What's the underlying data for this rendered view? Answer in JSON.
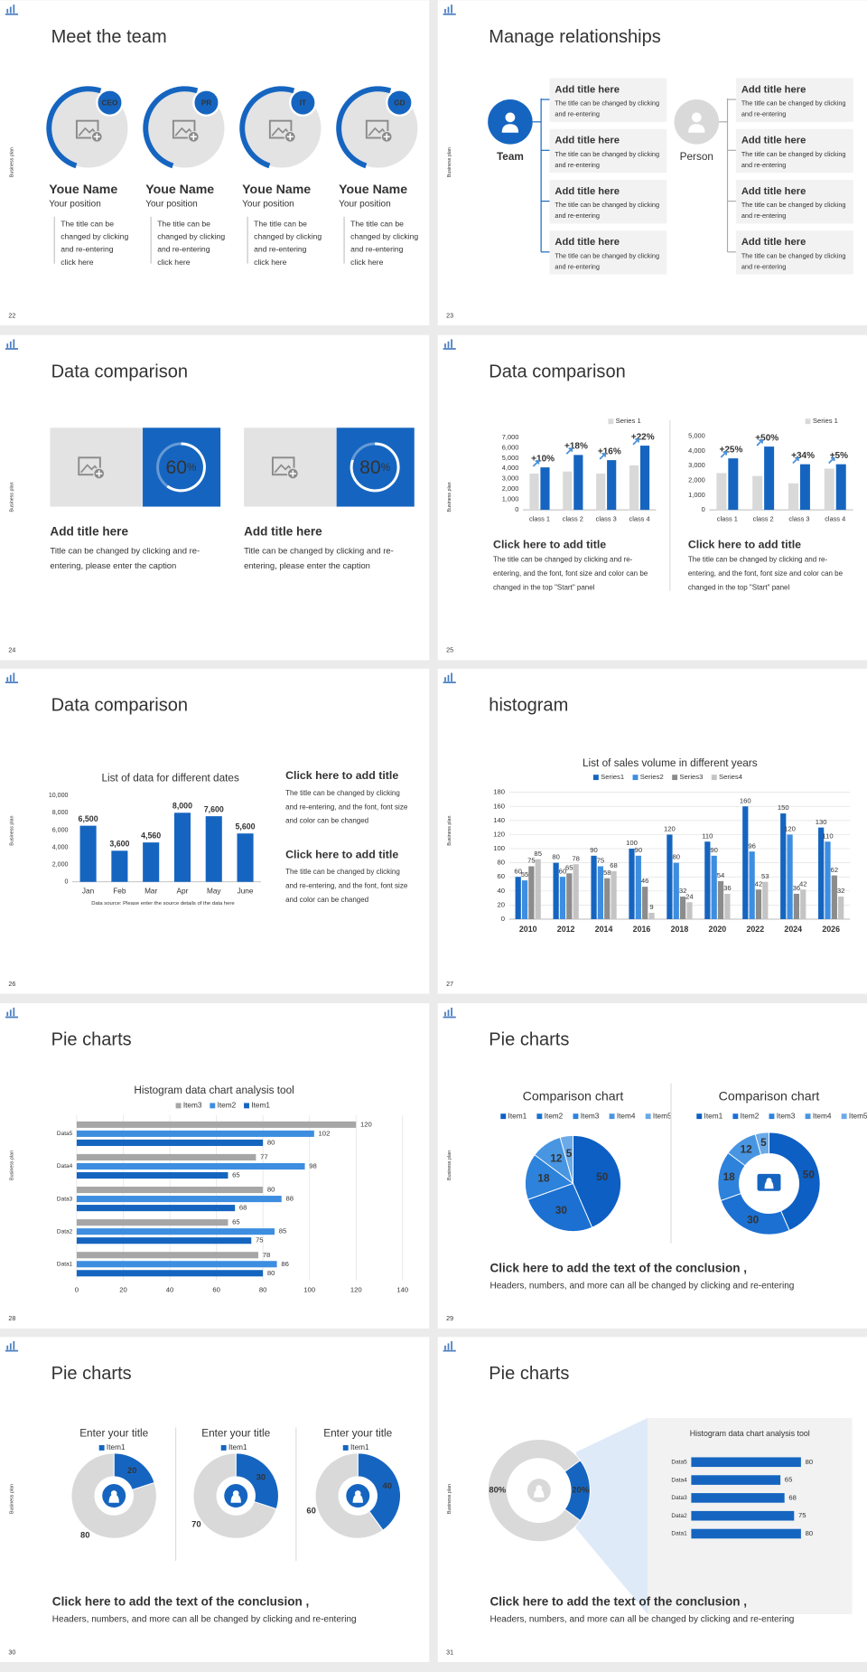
{
  "side_label": "Business plan",
  "slides": [
    {
      "number": 22,
      "title": "Meet the team",
      "members": [
        {
          "badge": "CEO",
          "name": "Youe Name",
          "position": "Your position",
          "description": [
            "The title can be",
            "changed by clicking",
            "and re-entering",
            "click here"
          ]
        },
        {
          "badge": "PR",
          "name": "Youe Name",
          "position": "Your position",
          "description": [
            "The title can be",
            "changed by clicking",
            "and re-entering",
            "click here"
          ]
        },
        {
          "badge": "IT",
          "name": "Youe Name",
          "position": "Your position",
          "description": [
            "The title can be",
            "changed by clicking",
            "and re-entering",
            "click here"
          ]
        },
        {
          "badge": "GD",
          "name": "Youe Name",
          "position": "Your position",
          "description": [
            "The title can be",
            "changed by clicking",
            "and re-entering",
            "click here"
          ]
        }
      ]
    },
    {
      "number": 23,
      "title": "Manage relationships",
      "left": {
        "label": "Team",
        "items": [
          {
            "title": "Add title here",
            "description": [
              "The title can be changed by clicking",
              "and re-entering"
            ]
          },
          {
            "title": "Add title here",
            "description": [
              "The title can be changed by clicking",
              "and re-entering"
            ]
          },
          {
            "title": "Add title here",
            "description": [
              "The title can be changed by clicking",
              "and re-entering"
            ]
          },
          {
            "title": "Add title here",
            "description": [
              "The title can be changed by clicking",
              "and re-entering"
            ]
          }
        ]
      },
      "right": {
        "label": "Person",
        "items": [
          {
            "title": "Add title here",
            "description": [
              "The title can be changed by clicking",
              "and re-entering"
            ]
          },
          {
            "title": "Add title here",
            "description": [
              "The title can be changed by clicking",
              "and re-entering"
            ]
          },
          {
            "title": "Add title here",
            "description": [
              "The title can be changed by clicking",
              "and re-entering"
            ]
          },
          {
            "title": "Add title here",
            "description": [
              "The title can be changed by clicking",
              "and re-entering"
            ]
          }
        ]
      }
    },
    {
      "number": 24,
      "title": "Data comparison",
      "panels": [
        {
          "value": 60,
          "unit": "%",
          "heading": "Add title here",
          "caption": [
            "Title can be changed by clicking and re-",
            "entering, please enter the caption"
          ]
        },
        {
          "value": 80,
          "unit": "%",
          "heading": "Add title here",
          "caption": [
            "Title can be changed by clicking and re-",
            "entering, please enter the caption"
          ]
        }
      ]
    },
    {
      "number": 25,
      "title": "Data comparison",
      "charts": [
        {
          "type": "bar",
          "categories": [
            "class 1",
            "class 2",
            "class 3",
            "class 4"
          ],
          "series": [
            {
              "name": "Series 1",
              "color": "#d9d9d9",
              "values": [
                3500,
                3700,
                3500,
                4300
              ]
            },
            {
              "color": "#1565c0",
              "values": [
                4100,
                5300,
                4800,
                6200
              ]
            }
          ],
          "growth_labels": [
            "+10%",
            "+18%",
            "+16%",
            "+22%"
          ],
          "ylim": [
            0,
            7000
          ],
          "yticks": [
            0,
            {
              "value": 1000,
              "label": "1,000"
            },
            {
              "value": 2000,
              "label": "2,000"
            },
            {
              "value": 3000,
              "label": "3,000"
            },
            {
              "value": 4000,
              "label": "4,000"
            },
            {
              "value": 5000,
              "label": "5,000"
            },
            {
              "value": 6000,
              "label": "6,000"
            },
            {
              "value": 7000,
              "label": "7,000"
            }
          ]
        },
        {
          "type": "bar",
          "categories": [
            "class 1",
            "class 2",
            "class 3",
            "class 4"
          ],
          "series": [
            {
              "name": "Series 1",
              "color": "#d9d9d9",
              "values": [
                2500,
                2300,
                1800,
                2800
              ]
            },
            {
              "color": "#1565c0",
              "values": [
                3500,
                4300,
                3100,
                3100
              ]
            }
          ],
          "growth_labels": [
            "+25%",
            "+50%",
            "+34%",
            "+5%"
          ],
          "ylim": [
            0,
            5000
          ],
          "yticks": [
            0,
            {
              "value": 1000,
              "label": "1,000"
            },
            {
              "value": 2000,
              "label": "2,000"
            },
            {
              "value": 3000,
              "label": "3,000"
            },
            {
              "value": 4000,
              "label": "4,000"
            },
            {
              "value": 5000,
              "label": "5,000"
            }
          ]
        }
      ],
      "texts": [
        {
          "heading": "Click here to add title",
          "description": [
            "The title can be changed by clicking and re-",
            "entering, and the font, font size and color can be",
            "changed in the top \"Start\" panel"
          ]
        },
        {
          "heading": "Click here to add title",
          "description": [
            "The title can be changed by clicking and re-",
            "entering, and the font, font size and color can be",
            "changed in the top \"Start\" panel"
          ]
        }
      ]
    },
    {
      "number": 26,
      "title": "Data comparison",
      "charts": [
        {
          "type": "bar",
          "title": "List of data for different dates",
          "categories": [
            "Jan",
            "Feb",
            "Mar",
            "Apr",
            "May",
            "June"
          ],
          "values": [
            6500,
            3600,
            4560,
            8000,
            7600,
            5600
          ],
          "value_labels": [
            "6,500",
            "3,600",
            "4,560",
            "8,000",
            "7,600",
            "5,600"
          ],
          "color": "#1565c0",
          "ylim": [
            0,
            10000
          ],
          "yticks": [
            0,
            {
              "value": 2000,
              "label": "2,000"
            },
            {
              "value": 4000,
              "label": "4,000"
            },
            {
              "value": 6000,
              "label": "6,000"
            },
            {
              "value": 8000,
              "label": "8,000"
            },
            {
              "value": 10000,
              "label": "10,000"
            }
          ],
          "note": "Data source: Please enter the source details of the data here"
        }
      ],
      "texts": [
        {
          "heading": "Click here to add title",
          "description": [
            "The title can be changed by clicking",
            "and re-entering, and the font, font size",
            "and color can be changed"
          ]
        },
        {
          "heading": "Click here to add title",
          "description": [
            "The title can be changed by clicking",
            "and re-entering, and the font, font size",
            "and color can be changed"
          ]
        }
      ]
    },
    {
      "number": 27,
      "title": "histogram",
      "charts": [
        {
          "type": "bar",
          "title": "List of sales volume in different years",
          "categories": [
            "2010",
            "2012",
            "2014",
            "2016",
            "2018",
            "2020",
            "2022",
            "2024",
            "2026"
          ],
          "series": [
            {
              "name": "Series1",
              "color": "#1565c0",
              "values": [
                60,
                80,
                90,
                100,
                120,
                110,
                160,
                150,
                130
              ]
            },
            {
              "name": "Series2",
              "color": "#3d8ee0",
              "values": [
                55,
                60,
                75,
                90,
                80,
                90,
                96,
                120,
                110
              ]
            },
            {
              "name": "Series3",
              "color": "#8c8c8c",
              "values": [
                75,
                65,
                58,
                46,
                32,
                54,
                42,
                36,
                62
              ]
            },
            {
              "name": "Series4",
              "color": "#c4c4c4",
              "values": [
                85,
                78,
                68,
                9,
                24,
                36,
                53,
                42,
                32
              ]
            }
          ],
          "ylim": [
            0,
            180
          ],
          "yticks": [
            0,
            20,
            40,
            60,
            80,
            100,
            120,
            140,
            160,
            180
          ],
          "grid": true
        }
      ]
    },
    {
      "number": 28,
      "title": "Pie charts",
      "charts": [
        {
          "type": "barh",
          "title": "Histogram data chart analysis tool",
          "categories": [
            "Data5",
            "Data4",
            "Data3",
            "Data2",
            "Data1"
          ],
          "series": [
            {
              "name": "Item3",
              "color": "#a6a6a6",
              "values": [
                120,
                77,
                80,
                65,
                78
              ]
            },
            {
              "name": "Item2",
              "color": "#3d8ee0",
              "values": [
                102,
                98,
                88,
                85,
                86
              ]
            },
            {
              "name": "Item1",
              "color": "#1565c0",
              "values": [
                80,
                65,
                68,
                75,
                80
              ]
            }
          ],
          "xlim": [
            0,
            140
          ],
          "xticks": [
            0,
            20,
            40,
            60,
            80,
            100,
            120,
            140
          ],
          "grid": true
        }
      ]
    },
    {
      "number": 29,
      "title": "Pie charts",
      "charts": [
        {
          "type": "pie",
          "title": "Comparison chart",
          "categories": [
            "Item1",
            "Item2",
            "Item3",
            "Item4",
            "Item5"
          ],
          "values": [
            50,
            30,
            18,
            12,
            5
          ],
          "colors": [
            "#0d5fc4",
            "#1b70d2",
            "#2d82db",
            "#4895e2",
            "#6aaae9"
          ]
        },
        {
          "type": "donut",
          "title": "Comparison chart",
          "categories": [
            "Item1",
            "Item2",
            "Item3",
            "Item4",
            "Item5"
          ],
          "values": [
            50,
            30,
            18,
            12,
            5
          ],
          "colors": [
            "#0d5fc4",
            "#1b70d2",
            "#2d82db",
            "#4895e2",
            "#6aaae9"
          ]
        }
      ],
      "conclusion": {
        "heading": "Click here to add the text of the conclusion ,",
        "text": "Headers, numbers, and more can all be changed by clicking and re-entering"
      }
    },
    {
      "number": 30,
      "title": "Pie charts",
      "charts": [
        {
          "type": "donut",
          "title": "Enter your title",
          "categories": [
            "Item1",
            null
          ],
          "values": [
            20,
            80
          ],
          "colors": [
            "#1565c0",
            "#d9d9d9"
          ]
        },
        {
          "type": "donut",
          "title": "Enter your title",
          "categories": [
            "Item1",
            null
          ],
          "values": [
            30,
            70
          ],
          "colors": [
            "#1565c0",
            "#d9d9d9"
          ]
        },
        {
          "type": "donut",
          "title": "Enter your title",
          "categories": [
            "Item1",
            null
          ],
          "values": [
            40,
            60
          ],
          "colors": [
            "#1565c0",
            "#d9d9d9"
          ]
        }
      ],
      "conclusion": {
        "heading": "Click here to add the text of the conclusion ,",
        "text": "Headers, numbers, and more can all be changed by clicking and re-entering"
      }
    },
    {
      "number": 31,
      "title": "Pie charts",
      "charts": [
        {
          "type": "donut",
          "values": [
            80,
            20
          ],
          "value_labels": [
            "80%",
            "20%"
          ],
          "colors": [
            "#d9d9d9",
            "#1565c0"
          ]
        },
        {
          "type": "barh",
          "title": "Histogram data chart analysis tool",
          "categories": [
            "Data5",
            "Data4",
            "Data3",
            "Data2",
            "Data1"
          ],
          "values": [
            80,
            65,
            68,
            75,
            80
          ],
          "color": "#1565c0"
        }
      ],
      "conclusion": {
        "heading": "Click here to add the text of the conclusion ,",
        "text": "Headers, numbers, and more can all be changed by clicking and re-entering"
      }
    }
  ]
}
